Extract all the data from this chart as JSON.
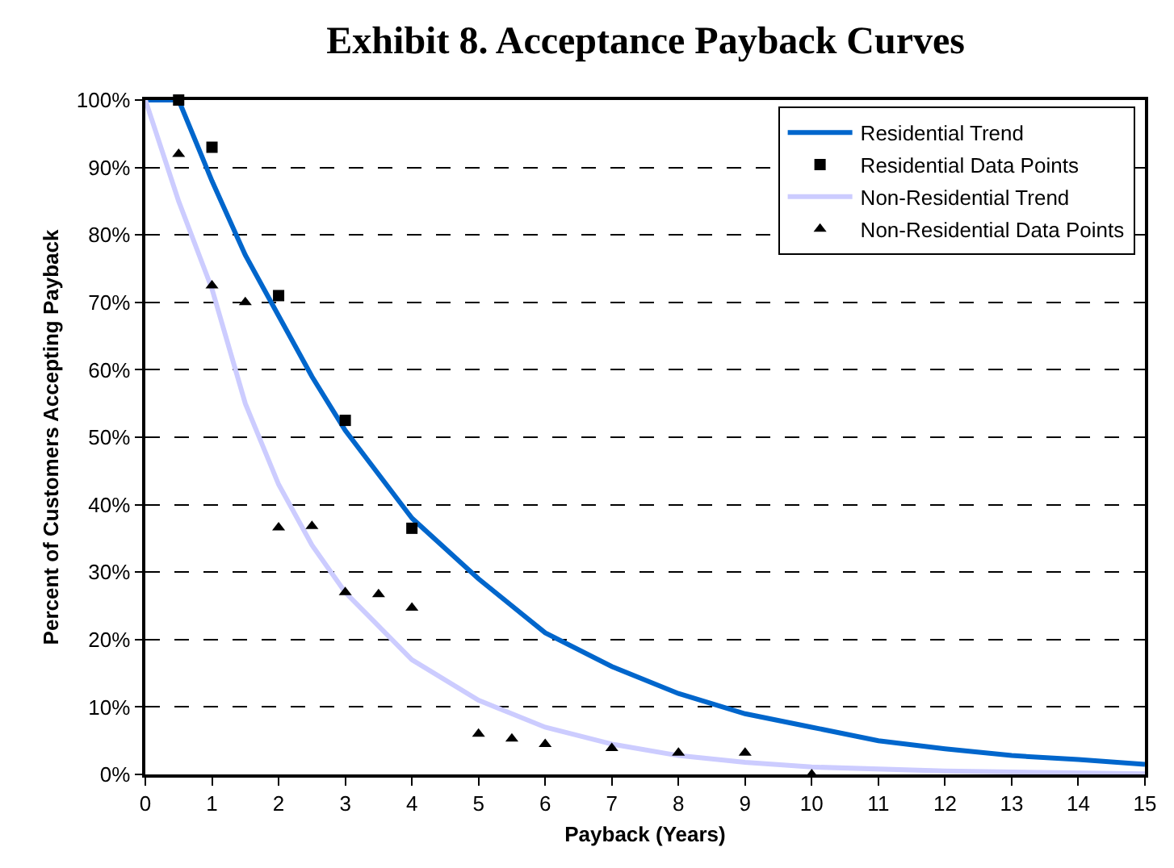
{
  "chart_data": {
    "type": "scatter",
    "title": "Exhibit 8. Acceptance Payback Curves",
    "xlabel": "Payback (Years)",
    "ylabel": "Percent of Customers Accepting Payback",
    "xlim": [
      0,
      15
    ],
    "xticks": [
      0,
      1,
      2,
      3,
      4,
      5,
      6,
      7,
      8,
      9,
      10,
      11,
      12,
      13,
      14,
      15
    ],
    "ylim": [
      0,
      100
    ],
    "yticks": [
      {
        "value": 0,
        "label": "0%"
      },
      {
        "value": 10,
        "label": "10%"
      },
      {
        "value": 20,
        "label": "20%"
      },
      {
        "value": 30,
        "label": "30%"
      },
      {
        "value": 40,
        "label": "40%"
      },
      {
        "value": 50,
        "label": "50%"
      },
      {
        "value": 60,
        "label": "60%"
      },
      {
        "value": 70,
        "label": "70%"
      },
      {
        "value": 80,
        "label": "80%"
      },
      {
        "value": 90,
        "label": "90%"
      },
      {
        "value": 100,
        "label": "100%"
      }
    ],
    "grid": "y",
    "legend": "top right",
    "series": [
      {
        "name": "Residential Trend",
        "type": "line",
        "color": "#0066cc",
        "marker": "none",
        "line_style": "solid",
        "x": [
          0,
          0.5,
          1,
          1.5,
          2,
          2.5,
          3,
          4,
          5,
          6,
          7,
          8,
          9,
          10,
          11,
          12,
          13,
          14,
          15
        ],
        "values": [
          100,
          100,
          88,
          77,
          68,
          59,
          51,
          38,
          29,
          21,
          16,
          12,
          9,
          7,
          5,
          3.8,
          2.8,
          2.2,
          1.5
        ]
      },
      {
        "name": "Residential Data Points",
        "color": "#000000",
        "marker": "square",
        "x": [
          0.5,
          1,
          2,
          3,
          4
        ],
        "values": [
          100,
          93,
          71,
          52.5,
          36.5
        ]
      },
      {
        "name": "Non-Residential Trend",
        "type": "line",
        "color": "#ccccff",
        "marker": "none",
        "line_style": "solid",
        "x": [
          0,
          0.5,
          1,
          1.5,
          2,
          2.5,
          3,
          4,
          5,
          6,
          7,
          8,
          9,
          10,
          12,
          15
        ],
        "values": [
          100,
          85,
          72,
          55,
          43,
          34,
          27,
          17,
          11,
          7,
          4.5,
          2.8,
          1.8,
          1.1,
          0.5,
          0.1
        ]
      },
      {
        "name": "Non-Residential Data Points",
        "color": "#000000",
        "marker": "triangle",
        "x": [
          0.5,
          1,
          1.5,
          2,
          2.5,
          3,
          3.5,
          4,
          5,
          5.5,
          6,
          7,
          8,
          9,
          10
        ],
        "values": [
          92,
          72.5,
          70,
          36.6,
          36.8,
          27,
          26.7,
          24.7,
          6,
          5.3,
          4.5,
          3.9,
          3.2,
          3.2,
          0
        ]
      }
    ]
  }
}
